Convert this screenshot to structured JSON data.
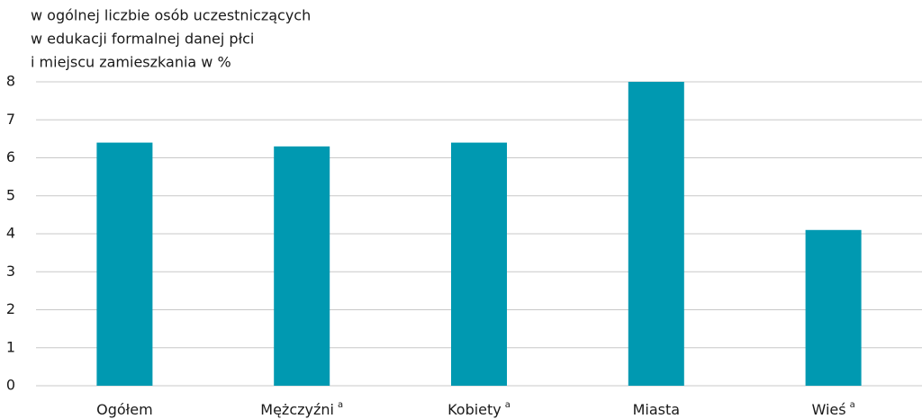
{
  "chart_data": {
    "type": "bar",
    "y_label": [
      "w ogólnej liczbie osób uczestniczących",
      "w edukacji formalnej danej płci",
      "i miejscu zamieszkania w %"
    ],
    "categories": [
      "Ogółem",
      "Mężczyźni",
      "Kobiety",
      "Miasta",
      "Wieś"
    ],
    "category_notes": [
      null,
      "a",
      "a",
      null,
      "a"
    ],
    "values": [
      6.4,
      6.3,
      6.4,
      8.0,
      4.1
    ],
    "color": "#0099b1",
    "ylim": [
      0,
      8
    ],
    "yticks": [
      0,
      1,
      2,
      3,
      4,
      5,
      6,
      7,
      8
    ],
    "grid": true
  }
}
